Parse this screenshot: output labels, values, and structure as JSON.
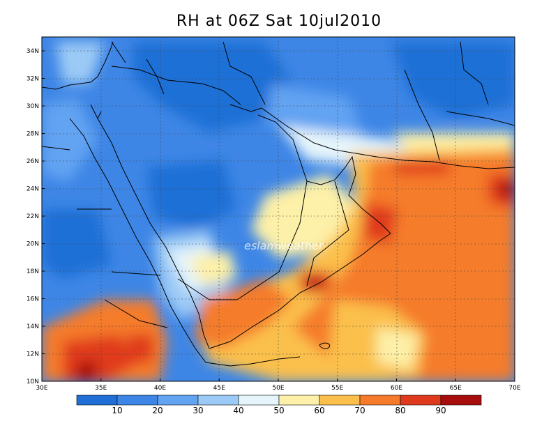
{
  "title": "RH at 06Z Sat 10jul2010",
  "watermark": "eslamweather",
  "axes": {
    "lon_ticks": [
      "30E",
      "35E",
      "40E",
      "45E",
      "50E",
      "55E",
      "60E",
      "65E",
      "70E"
    ],
    "lat_ticks": [
      "10N",
      "12N",
      "14N",
      "16N",
      "18N",
      "20N",
      "22N",
      "24N",
      "26N",
      "28N",
      "30N",
      "32N",
      "34N"
    ]
  },
  "colorbar": {
    "labels": [
      "10",
      "20",
      "30",
      "40",
      "50",
      "60",
      "70",
      "80",
      "90"
    ],
    "colors": [
      "#1f6fd6",
      "#3e86e6",
      "#62a3f2",
      "#9ccaf6",
      "#e6f5fb",
      "#fdf0a8",
      "#fbc04c",
      "#f57b2a",
      "#e03a1e",
      "#a80d0d"
    ]
  },
  "colors": {
    "map_border": "#000000",
    "coast": "#000000"
  }
}
